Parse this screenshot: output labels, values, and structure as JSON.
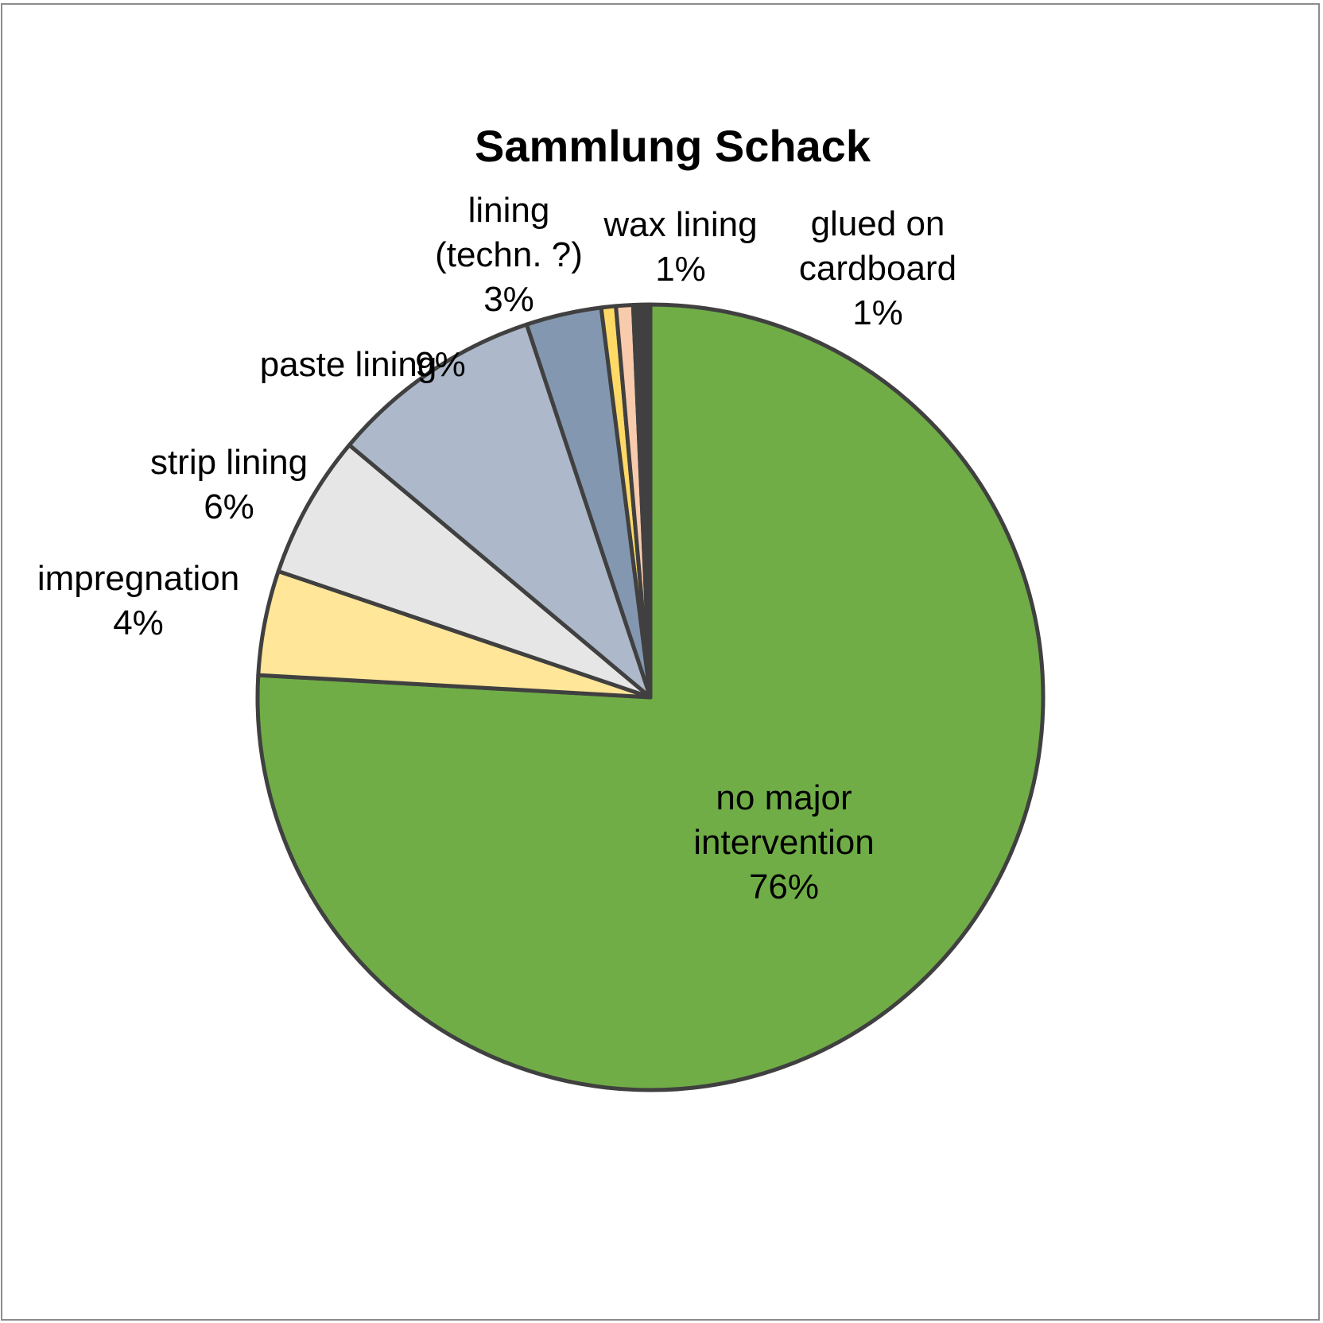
{
  "chart_data": {
    "type": "pie",
    "title": "Sammlung Schack",
    "start": "top, clockwise",
    "slices": [
      {
        "name": "no major intervention",
        "lines": [
          "no major",
          "intervention"
        ],
        "pct_label": "76%",
        "value": 75.9,
        "color": "#70ad47"
      },
      {
        "name": "impregnation",
        "lines": [
          "impregnation"
        ],
        "pct_label": "4%",
        "value": 4.3,
        "color": "#ffe699"
      },
      {
        "name": "strip lining",
        "lines": [
          "strip lining"
        ],
        "pct_label": "6%",
        "value": 5.9,
        "color": "#e6e6e6"
      },
      {
        "name": "paste lining",
        "lines": [
          "paste lining"
        ],
        "pct_label": "9%",
        "value": 8.8,
        "color": "#adb9ca"
      },
      {
        "name": "lining (techn. ?)",
        "lines": [
          "lining",
          "(techn. ?)"
        ],
        "pct_label": "3%",
        "value": 3.1,
        "color": "#8497b0"
      },
      {
        "name": "wax lining",
        "lines": [
          "wax lining"
        ],
        "pct_label": "1%",
        "value": 0.6,
        "color": "#ffd966"
      },
      {
        "name": "glued on cardboard",
        "lines": [
          "glued on",
          "cardboard"
        ],
        "pct_label": "1%",
        "value": 0.7,
        "color": "#f8cbad"
      },
      {
        "name": "",
        "lines": [],
        "pct_label": "",
        "value": 0.7,
        "color": "#404040"
      }
    ],
    "border_color": "#404040"
  }
}
